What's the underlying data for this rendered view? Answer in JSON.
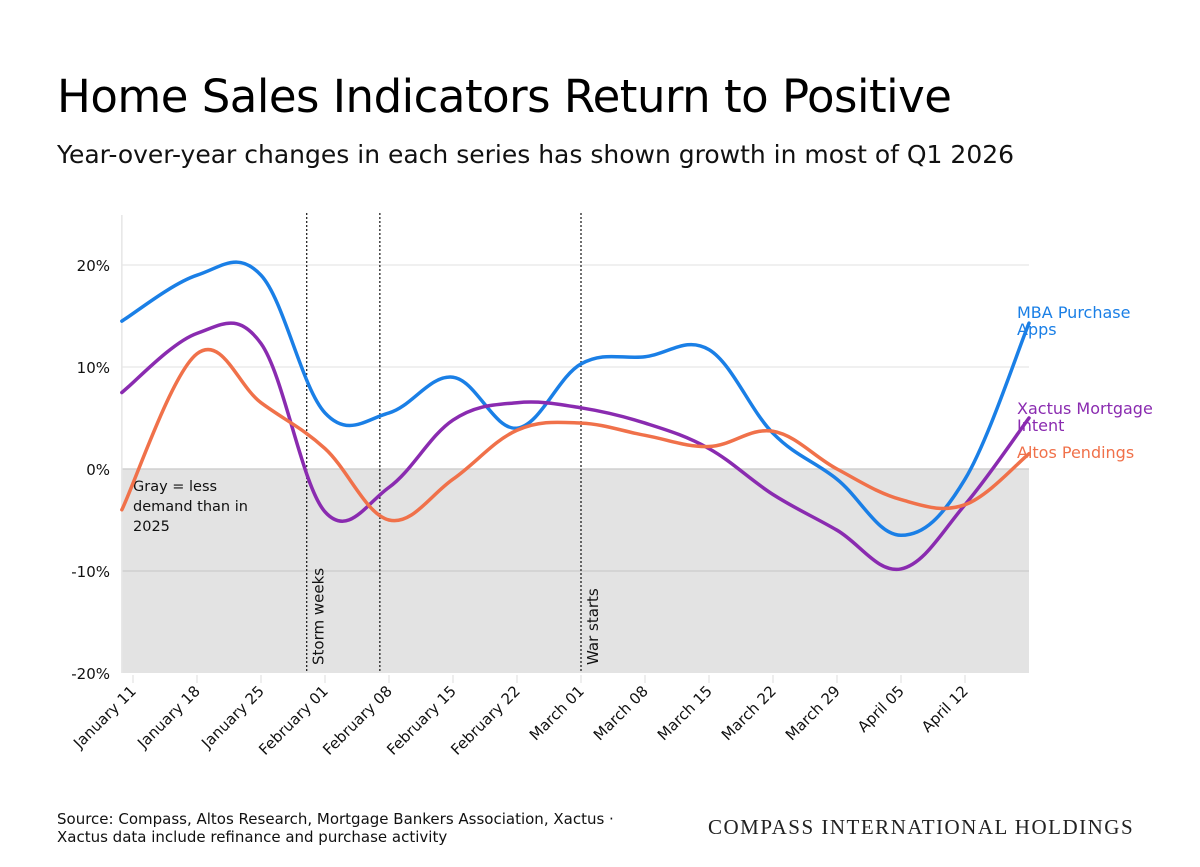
{
  "chart_data": {
    "type": "line",
    "title": "Home Sales Indicators Return to Positive",
    "subtitle": "Year-over-year changes in each series has shown growth in most of Q1 2026",
    "xlabel": "",
    "ylabel": "",
    "ylim": [
      -20,
      20
    ],
    "xlim": [
      "2026-01-10",
      "2026-04-19"
    ],
    "y_ticks": [
      20,
      10,
      0,
      -10,
      -20
    ],
    "y_tick_labels": [
      "20%",
      "10%",
      "0%",
      "-10%",
      "-20%"
    ],
    "grid": "horizontal",
    "x": [
      "2026-01-11",
      "2026-01-18",
      "2026-01-25",
      "2026-02-01",
      "2026-02-08",
      "2026-02-15",
      "2026-02-22",
      "2026-03-01",
      "2026-03-08",
      "2026-03-15",
      "2026-03-22",
      "2026-03-29",
      "2026-04-05",
      "2026-04-12",
      "2026-04-19"
    ],
    "x_tick_labels": [
      "January 11",
      "January 18",
      "January 25",
      "February 01",
      "February 08",
      "February 15",
      "February 22",
      "March 01",
      "March 08",
      "March 15",
      "March 22",
      "March 29",
      "April 05",
      "April 12"
    ],
    "series": [
      {
        "name": "MBA Purchase Apps",
        "color": "#1a7fe6",
        "values": [
          14.5,
          19.0,
          19.0,
          5.5,
          5.5,
          9.0,
          4.0,
          10.3,
          11.0,
          11.7,
          3.5,
          -1.0,
          -6.5,
          -1.0,
          14.3
        ]
      },
      {
        "name": "Xactus Mortgage Intent",
        "color": "#8a2bb0",
        "values": [
          7.5,
          13.3,
          12.3,
          -4.2,
          -1.8,
          4.8,
          6.5,
          6.0,
          4.5,
          2.0,
          -2.5,
          -6.0,
          -9.8,
          -3.5,
          5.0
        ]
      },
      {
        "name": "Altos Pendings",
        "color": "#f0714a",
        "values": [
          -4.0,
          11.3,
          6.5,
          2.0,
          -5.0,
          -1.0,
          3.8,
          4.5,
          3.3,
          2.2,
          3.7,
          0.0,
          -3.0,
          -3.5,
          1.5
        ]
      }
    ],
    "shaded_region": {
      "from": 0,
      "to": -20,
      "color": "#e3e3e3",
      "label": "Gray = less demand than in 2025"
    },
    "annotations": [
      {
        "date": "2026-01-30",
        "label": "Storm weeks"
      },
      {
        "date": "2026-02-07",
        "label": ""
      },
      {
        "date": "2026-03-01",
        "label": "War starts"
      }
    ],
    "legend": "direct labels at right end of lines"
  },
  "footer": {
    "source_line1": "Source: Compass, Altos Research, Mortgage Bankers Association, Xactus ·",
    "source_line2": "Xactus data include refinance and purchase activity",
    "brand": "COMPASS INTERNATIONAL HOLDINGS"
  }
}
